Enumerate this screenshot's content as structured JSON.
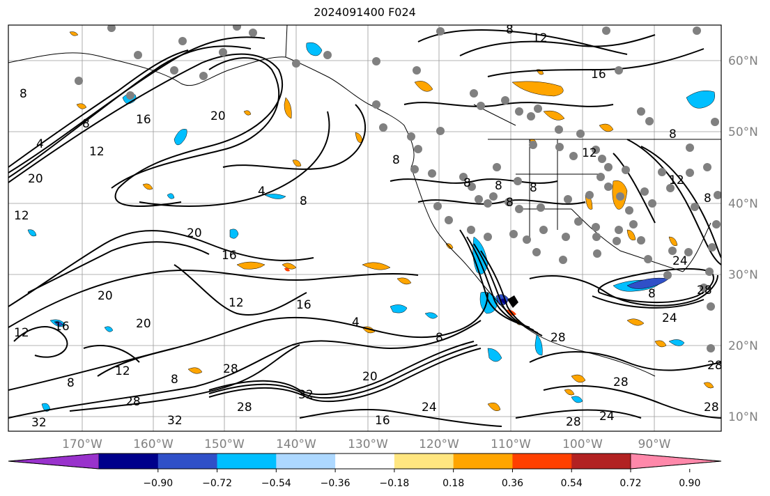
{
  "title": "2024091400 F024",
  "lon_labels": [
    "170°W",
    "160°W",
    "150°W",
    "140°W",
    "130°W",
    "120°W",
    "110°W",
    "100°W",
    "90°W"
  ],
  "lat_labels": [
    "60°N",
    "50°N",
    "40°N",
    "30°N",
    "20°N",
    "10°N"
  ],
  "colorbar": {
    "colors": [
      "#9932cc",
      "#00008b",
      "#3050c8",
      "#00bfff",
      "#add8ff",
      "#ffffff",
      "#ffe680",
      "#ffa500",
      "#ff4000",
      "#b22222",
      "#ff88aa"
    ],
    "tick_labels": [
      "−0.90",
      "−0.72",
      "−0.54",
      "−0.36",
      "−0.18",
      "0.18",
      "0.36",
      "0.54",
      "0.72",
      "0.90"
    ]
  },
  "contour_labels": [
    "4",
    "8",
    "12",
    "16",
    "20",
    "24",
    "28",
    "32"
  ],
  "colors": {
    "contour": "#000000",
    "station": "#808080",
    "grid": "#999999",
    "axis_label": "#808080"
  }
}
